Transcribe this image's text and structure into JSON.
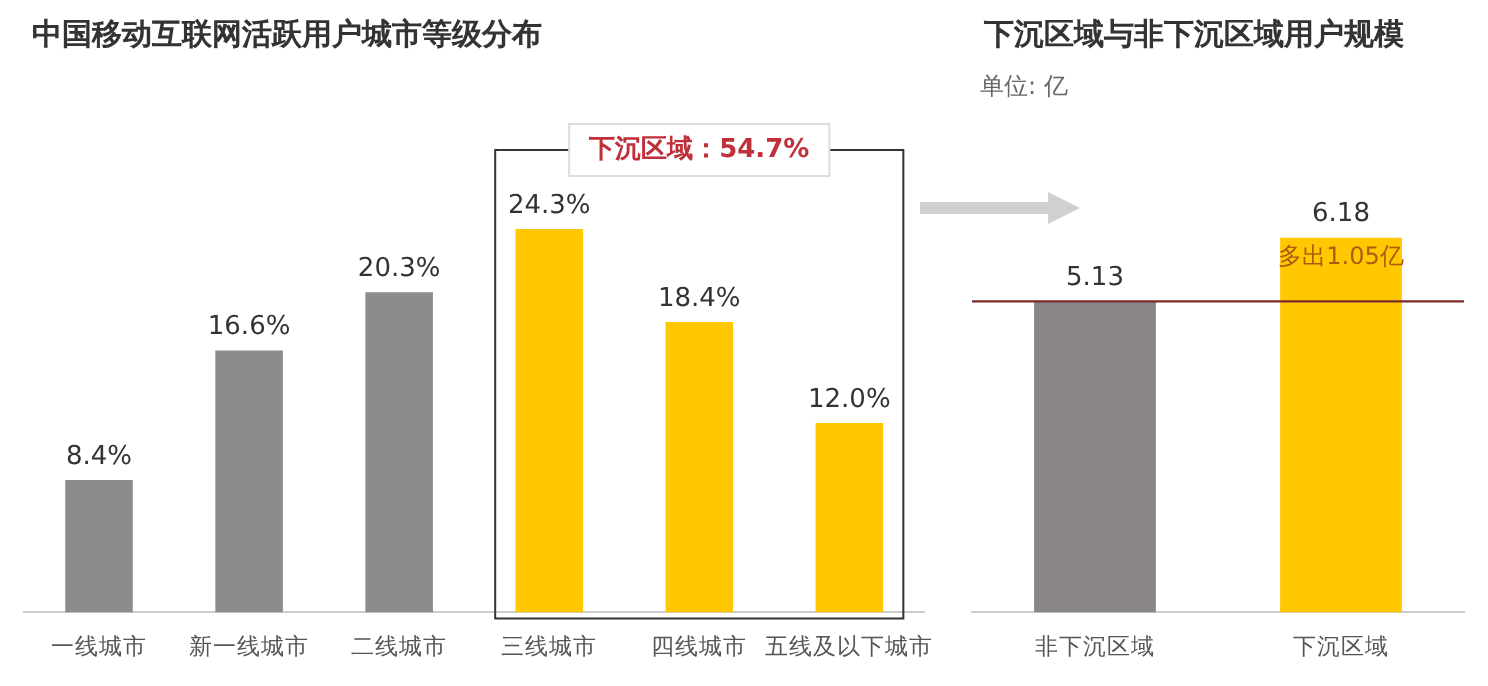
{
  "chart_data": [
    {
      "type": "bar",
      "title": "中国移动互联网活跃用户城市等级分布",
      "categories": [
        "一线城市",
        "新一线城市",
        "二线城市",
        "三线城市",
        "四线城市",
        "五线及以下城市"
      ],
      "values": [
        8.4,
        16.6,
        20.3,
        24.3,
        18.4,
        12.0
      ],
      "colors": [
        "#8c8c8c",
        "#8c8c8c",
        "#8c8c8c",
        "#ffc800",
        "#ffc800",
        "#ffc800"
      ],
      "value_labels": [
        "8.4%",
        "16.6%",
        "20.3%",
        "24.3%",
        "18.4%",
        "12.0%"
      ],
      "annotations": [
        "下沉区域：54.7%"
      ]
    },
    {
      "type": "bar",
      "title": "下沉区域与非下沉区域用户规模",
      "categories": [
        "非下沉区域",
        "下沉区域"
      ],
      "values": [
        5.13,
        6.18
      ],
      "colors": [
        "#8a8589",
        "#ffc800"
      ],
      "data_labels": true,
      "ref_lines": [
        {
          "axis": "y",
          "value": 5.13,
          "color": "#7a2a2a"
        }
      ],
      "annotations": [
        "单位: 亿",
        "多出1.05亿"
      ]
    }
  ]
}
